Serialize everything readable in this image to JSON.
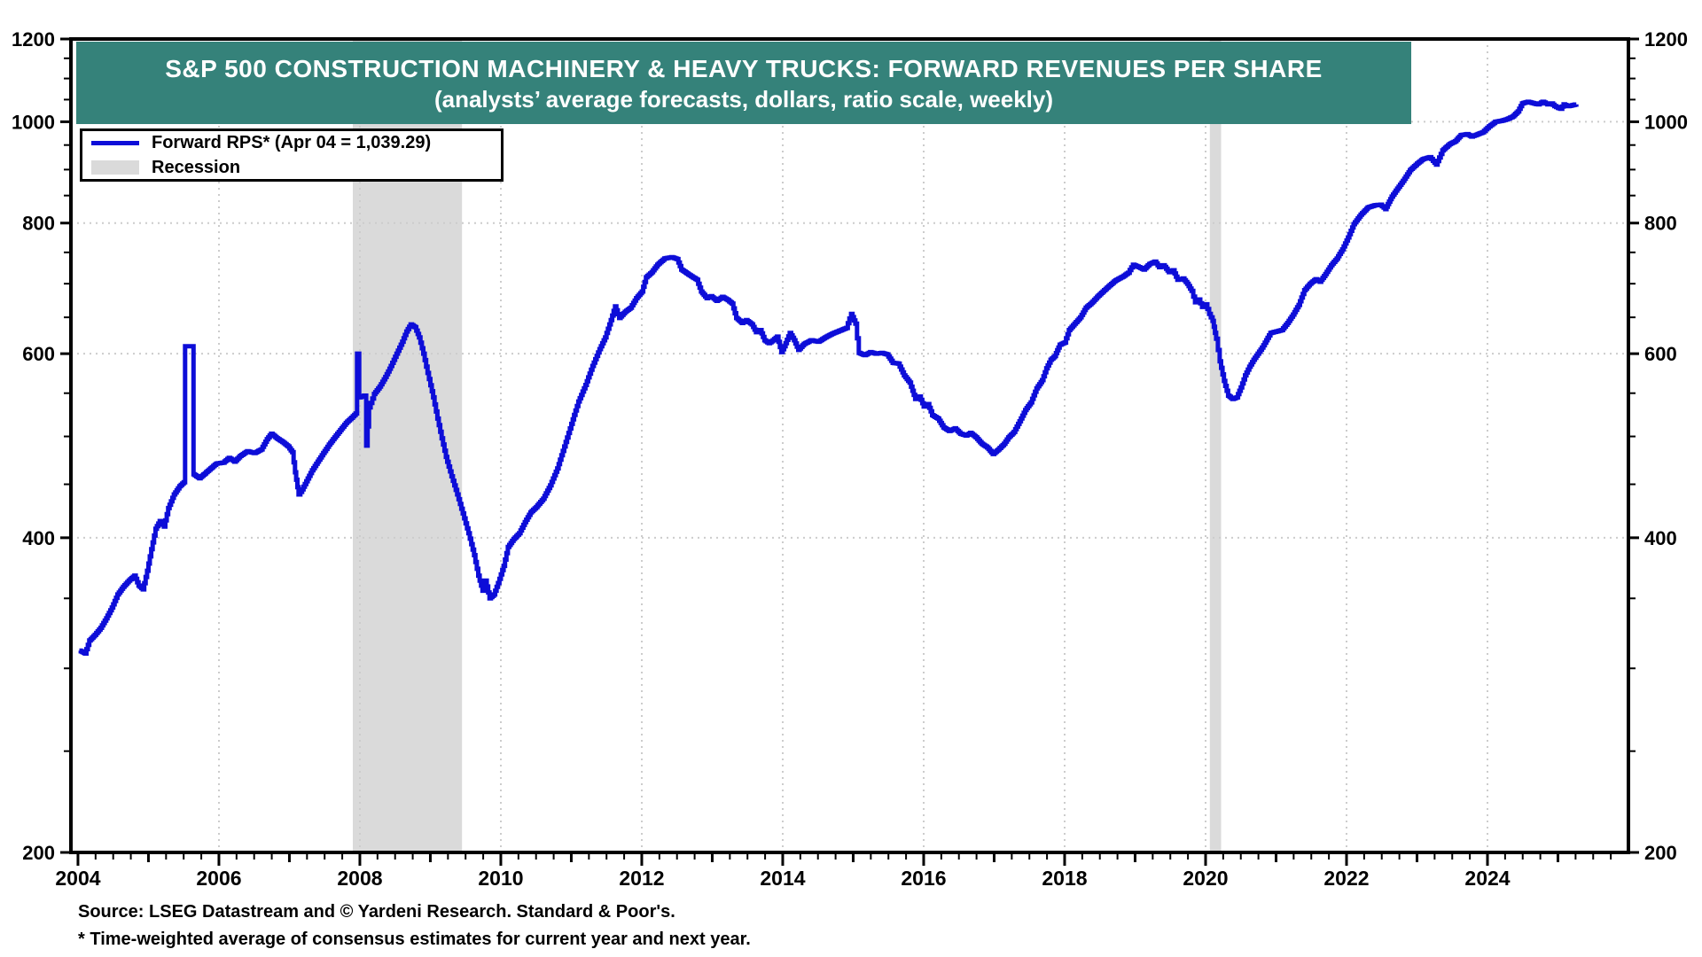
{
  "title": {
    "line1": "S&P 500 CONSTRUCTION MACHINERY & HEAVY TRUCKS: FORWARD REVENUES PER SHARE",
    "line2": "(analysts’ average forecasts, dollars, ratio scale, weekly)"
  },
  "legend": {
    "series_label": "Forward RPS* (Apr 04 = 1,039.29)",
    "recession_label": "Recession"
  },
  "footer": {
    "source": "Source: LSEG Datastream and © Yardeni Research. Standard & Poor's.",
    "footnote": "* Time-weighted average of consensus estimates for current year and next year."
  },
  "theme": {
    "banner_color": "#35827a",
    "line_color": "#0d0dd8",
    "recession_color": "#dadada",
    "grid_color": "#cccccc",
    "axis_color": "#000000"
  },
  "chart_data": {
    "type": "line",
    "title": "S&P 500 Construction Machinery & Heavy Trucks: Forward Revenues Per Share",
    "xlabel": "",
    "ylabel": "Forward revenues per share (dollars, ratio scale)",
    "scale": "log",
    "x_range": [
      2003.9,
      2026.0
    ],
    "y_range": [
      200,
      1200
    ],
    "grid": "dotted",
    "legend_position": "top-left",
    "y_tick_labels": [
      200,
      400,
      600,
      800,
      1000,
      1200
    ],
    "x_tick_labels": [
      2004,
      2006,
      2008,
      2010,
      2012,
      2014,
      2016,
      2018,
      2020,
      2022,
      2024
    ],
    "recessions": [
      [
        2007.9,
        2009.45
      ],
      [
        2020.06,
        2020.22
      ]
    ],
    "last_point_label": "Apr 04 = 1,039.29",
    "series": [
      {
        "name": "Forward RPS",
        "points": [
          [
            2004.02,
            312
          ],
          [
            2004.1,
            310
          ],
          [
            2004.16,
            319
          ],
          [
            2004.24,
            323
          ],
          [
            2004.32,
            328
          ],
          [
            2004.4,
            335
          ],
          [
            2004.48,
            343
          ],
          [
            2004.56,
            353
          ],
          [
            2004.64,
            359
          ],
          [
            2004.72,
            364
          ],
          [
            2004.8,
            368
          ],
          [
            2004.86,
            360
          ],
          [
            2004.92,
            357
          ],
          [
            2004.98,
            372
          ],
          [
            2005.04,
            390
          ],
          [
            2005.1,
            408
          ],
          [
            2005.16,
            415
          ],
          [
            2005.22,
            410
          ],
          [
            2005.28,
            427
          ],
          [
            2005.36,
            440
          ],
          [
            2005.44,
            448
          ],
          [
            2005.5,
            452
          ],
          [
            2005.52,
            610
          ],
          [
            2005.62,
            610
          ],
          [
            2005.64,
            460
          ],
          [
            2005.72,
            456
          ],
          [
            2005.8,
            461
          ],
          [
            2005.88,
            466
          ],
          [
            2005.96,
            471
          ],
          [
            2006.06,
            472
          ],
          [
            2006.14,
            477
          ],
          [
            2006.22,
            473
          ],
          [
            2006.3,
            479
          ],
          [
            2006.4,
            484
          ],
          [
            2006.5,
            482
          ],
          [
            2006.6,
            486
          ],
          [
            2006.68,
            497
          ],
          [
            2006.74,
            503
          ],
          [
            2006.82,
            498
          ],
          [
            2006.9,
            494
          ],
          [
            2006.98,
            489
          ],
          [
            2007.04,
            483
          ],
          [
            2007.08,
            462
          ],
          [
            2007.13,
            440
          ],
          [
            2007.18,
            445
          ],
          [
            2007.24,
            453
          ],
          [
            2007.32,
            464
          ],
          [
            2007.4,
            473
          ],
          [
            2007.48,
            482
          ],
          [
            2007.56,
            491
          ],
          [
            2007.64,
            499
          ],
          [
            2007.72,
            507
          ],
          [
            2007.8,
            515
          ],
          [
            2007.88,
            521
          ],
          [
            2007.94,
            526
          ],
          [
            2007.96,
            600
          ],
          [
            2007.99,
            545
          ],
          [
            2008.06,
            547
          ],
          [
            2008.09,
            490
          ],
          [
            2008.13,
            533
          ],
          [
            2008.2,
            549
          ],
          [
            2008.28,
            558
          ],
          [
            2008.36,
            570
          ],
          [
            2008.44,
            584
          ],
          [
            2008.52,
            600
          ],
          [
            2008.6,
            616
          ],
          [
            2008.66,
            630
          ],
          [
            2008.72,
            640
          ],
          [
            2008.78,
            636
          ],
          [
            2008.84,
            622
          ],
          [
            2008.9,
            600
          ],
          [
            2008.96,
            575
          ],
          [
            2009.04,
            545
          ],
          [
            2009.1,
            520
          ],
          [
            2009.16,
            498
          ],
          [
            2009.22,
            478
          ],
          [
            2009.3,
            458
          ],
          [
            2009.38,
            440
          ],
          [
            2009.46,
            422
          ],
          [
            2009.54,
            404
          ],
          [
            2009.62,
            385
          ],
          [
            2009.68,
            368
          ],
          [
            2009.74,
            356
          ],
          [
            2009.78,
            364
          ],
          [
            2009.84,
            350
          ],
          [
            2009.9,
            353
          ],
          [
            2009.96,
            362
          ],
          [
            2010.04,
            376
          ],
          [
            2010.1,
            392
          ],
          [
            2010.18,
            399
          ],
          [
            2010.26,
            404
          ],
          [
            2010.34,
            414
          ],
          [
            2010.42,
            423
          ],
          [
            2010.5,
            428
          ],
          [
            2010.6,
            436
          ],
          [
            2010.7,
            449
          ],
          [
            2010.8,
            466
          ],
          [
            2010.9,
            489
          ],
          [
            2011.0,
            514
          ],
          [
            2011.1,
            540
          ],
          [
            2011.2,
            560
          ],
          [
            2011.3,
            584
          ],
          [
            2011.4,
            606
          ],
          [
            2011.48,
            622
          ],
          [
            2011.56,
            646
          ],
          [
            2011.62,
            666
          ],
          [
            2011.68,
            649
          ],
          [
            2011.76,
            658
          ],
          [
            2011.84,
            664
          ],
          [
            2011.92,
            678
          ],
          [
            2012.0,
            688
          ],
          [
            2012.06,
            710
          ],
          [
            2012.14,
            718
          ],
          [
            2012.22,
            730
          ],
          [
            2012.32,
            740
          ],
          [
            2012.42,
            742
          ],
          [
            2012.5,
            739
          ],
          [
            2012.56,
            722
          ],
          [
            2012.64,
            716
          ],
          [
            2012.72,
            710
          ],
          [
            2012.78,
            706
          ],
          [
            2012.84,
            688
          ],
          [
            2012.92,
            678
          ],
          [
            2012.98,
            681
          ],
          [
            2013.06,
            674
          ],
          [
            2013.14,
            680
          ],
          [
            2013.22,
            675
          ],
          [
            2013.28,
            670
          ],
          [
            2013.34,
            649
          ],
          [
            2013.42,
            642
          ],
          [
            2013.48,
            646
          ],
          [
            2013.56,
            640
          ],
          [
            2013.62,
            629
          ],
          [
            2013.68,
            632
          ],
          [
            2013.74,
            618
          ],
          [
            2013.8,
            614
          ],
          [
            2013.86,
            618
          ],
          [
            2013.92,
            623
          ],
          [
            2013.98,
            602
          ],
          [
            2014.04,
            614
          ],
          [
            2014.1,
            628
          ],
          [
            2014.16,
            618
          ],
          [
            2014.22,
            605
          ],
          [
            2014.3,
            613
          ],
          [
            2014.4,
            618
          ],
          [
            2014.5,
            616
          ],
          [
            2014.6,
            622
          ],
          [
            2014.7,
            627
          ],
          [
            2014.8,
            631
          ],
          [
            2014.9,
            635
          ],
          [
            2014.97,
            655
          ],
          [
            2015.03,
            641
          ],
          [
            2015.08,
            601
          ],
          [
            2015.16,
            598
          ],
          [
            2015.24,
            602
          ],
          [
            2015.32,
            600
          ],
          [
            2015.4,
            601
          ],
          [
            2015.48,
            599
          ],
          [
            2015.56,
            588
          ],
          [
            2015.64,
            587
          ],
          [
            2015.72,
            572
          ],
          [
            2015.8,
            563
          ],
          [
            2015.88,
            543
          ],
          [
            2015.94,
            546
          ],
          [
            2016.0,
            534
          ],
          [
            2016.06,
            537
          ],
          [
            2016.12,
            524
          ],
          [
            2016.2,
            520
          ],
          [
            2016.28,
            510
          ],
          [
            2016.36,
            506
          ],
          [
            2016.44,
            509
          ],
          [
            2016.52,
            503
          ],
          [
            2016.6,
            501
          ],
          [
            2016.66,
            504
          ],
          [
            2016.74,
            499
          ],
          [
            2016.82,
            492
          ],
          [
            2016.9,
            488
          ],
          [
            2016.98,
            481
          ],
          [
            2017.06,
            486
          ],
          [
            2017.14,
            492
          ],
          [
            2017.2,
            499
          ],
          [
            2017.28,
            505
          ],
          [
            2017.36,
            517
          ],
          [
            2017.44,
            530
          ],
          [
            2017.52,
            539
          ],
          [
            2017.6,
            556
          ],
          [
            2017.68,
            566
          ],
          [
            2017.74,
            581
          ],
          [
            2017.8,
            592
          ],
          [
            2017.86,
            597
          ],
          [
            2017.93,
            612
          ],
          [
            2018.0,
            615
          ],
          [
            2018.06,
            632
          ],
          [
            2018.14,
            641
          ],
          [
            2018.22,
            650
          ],
          [
            2018.3,
            664
          ],
          [
            2018.38,
            671
          ],
          [
            2018.46,
            680
          ],
          [
            2018.54,
            688
          ],
          [
            2018.62,
            696
          ],
          [
            2018.72,
            705
          ],
          [
            2018.82,
            711
          ],
          [
            2018.9,
            717
          ],
          [
            2018.97,
            730
          ],
          [
            2019.05,
            726
          ],
          [
            2019.12,
            722
          ],
          [
            2019.2,
            731
          ],
          [
            2019.28,
            735
          ],
          [
            2019.34,
            726
          ],
          [
            2019.4,
            729
          ],
          [
            2019.48,
            718
          ],
          [
            2019.54,
            721
          ],
          [
            2019.6,
            706
          ],
          [
            2019.68,
            708
          ],
          [
            2019.74,
            700
          ],
          [
            2019.8,
            689
          ],
          [
            2019.85,
            672
          ],
          [
            2019.9,
            676
          ],
          [
            2019.95,
            665
          ],
          [
            2020.0,
            669
          ],
          [
            2020.05,
            655
          ],
          [
            2020.1,
            645
          ],
          [
            2020.15,
            620
          ],
          [
            2020.2,
            590
          ],
          [
            2020.26,
            565
          ],
          [
            2020.32,
            547
          ],
          [
            2020.38,
            543
          ],
          [
            2020.44,
            545
          ],
          [
            2020.5,
            557
          ],
          [
            2020.56,
            572
          ],
          [
            2020.62,
            583
          ],
          [
            2020.68,
            592
          ],
          [
            2020.74,
            600
          ],
          [
            2020.8,
            608
          ],
          [
            2020.86,
            618
          ],
          [
            2020.92,
            628
          ],
          [
            2021.0,
            630
          ],
          [
            2021.08,
            632
          ],
          [
            2021.16,
            642
          ],
          [
            2021.24,
            654
          ],
          [
            2021.32,
            668
          ],
          [
            2021.4,
            690
          ],
          [
            2021.48,
            700
          ],
          [
            2021.56,
            707
          ],
          [
            2021.62,
            703
          ],
          [
            2021.7,
            715
          ],
          [
            2021.78,
            729
          ],
          [
            2021.86,
            740
          ],
          [
            2021.94,
            755
          ],
          [
            2022.02,
            775
          ],
          [
            2022.1,
            798
          ],
          [
            2022.2,
            815
          ],
          [
            2022.3,
            828
          ],
          [
            2022.4,
            832
          ],
          [
            2022.48,
            833
          ],
          [
            2022.55,
            825
          ],
          [
            2022.64,
            848
          ],
          [
            2022.72,
            863
          ],
          [
            2022.8,
            878
          ],
          [
            2022.9,
            899
          ],
          [
            2023.0,
            912
          ],
          [
            2023.08,
            921
          ],
          [
            2023.18,
            925
          ],
          [
            2023.27,
            910
          ],
          [
            2023.36,
            939
          ],
          [
            2023.46,
            952
          ],
          [
            2023.54,
            958
          ],
          [
            2023.62,
            971
          ],
          [
            2023.71,
            973
          ],
          [
            2023.77,
            968
          ],
          [
            2023.86,
            973
          ],
          [
            2023.93,
            977
          ],
          [
            2024.02,
            990
          ],
          [
            2024.11,
            1000
          ],
          [
            2024.19,
            1002
          ],
          [
            2024.28,
            1006
          ],
          [
            2024.36,
            1012
          ],
          [
            2024.43,
            1023
          ],
          [
            2024.49,
            1041
          ],
          [
            2024.57,
            1045
          ],
          [
            2024.66,
            1041
          ],
          [
            2024.72,
            1039
          ],
          [
            2024.78,
            1045
          ],
          [
            2024.85,
            1039
          ],
          [
            2024.91,
            1041
          ],
          [
            2024.95,
            1035
          ],
          [
            2025.0,
            1031
          ],
          [
            2025.04,
            1029
          ],
          [
            2025.08,
            1039
          ],
          [
            2025.14,
            1035
          ],
          [
            2025.2,
            1037
          ],
          [
            2025.26,
            1039.29
          ]
        ]
      }
    ]
  }
}
